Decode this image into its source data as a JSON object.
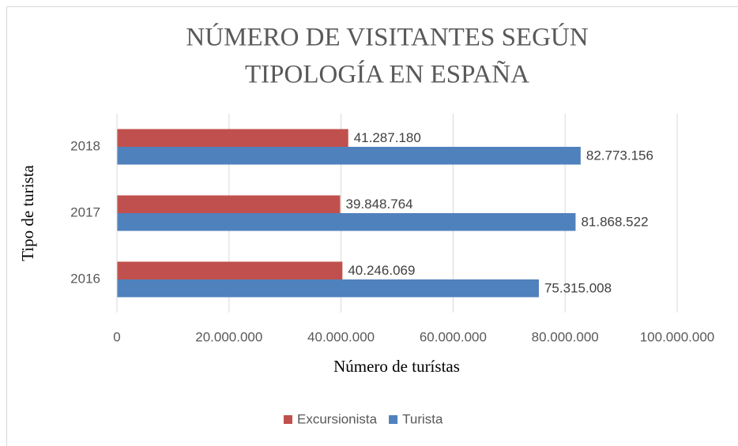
{
  "chart_data": {
    "type": "barh",
    "title": [
      "NÚMERO DE VISITANTES SEGÚN",
      "TIPOLOGÍA EN ESPAÑA"
    ],
    "x_label": "Número de turístas",
    "y_label": "Tipo de turista",
    "categories": [
      "2016",
      "2017",
      "2018"
    ],
    "series": [
      {
        "name": "Excursionista",
        "color": "#c0504d",
        "values": [
          40246069,
          39848764,
          41287180
        ],
        "value_labels": [
          "40.246.069",
          "39.848.764",
          "41.287.180"
        ]
      },
      {
        "name": "Turista",
        "color": "#4f81bd",
        "values": [
          75315008,
          81868522,
          82773156
        ],
        "value_labels": [
          "75.315.008",
          "81.868.522",
          "82.773.156"
        ]
      }
    ],
    "xlim": [
      0,
      100000000
    ],
    "xticks": [
      0,
      {
        "value": 20000000,
        "label": "20.000.000"
      },
      {
        "value": 40000000,
        "label": "40.000.000"
      },
      {
        "value": 60000000,
        "label": "60.000.000"
      },
      {
        "value": 80000000,
        "label": "80.000.000"
      },
      {
        "value": 100000000,
        "label": "100.000.000"
      }
    ],
    "grid": true,
    "legend": "bottom"
  }
}
